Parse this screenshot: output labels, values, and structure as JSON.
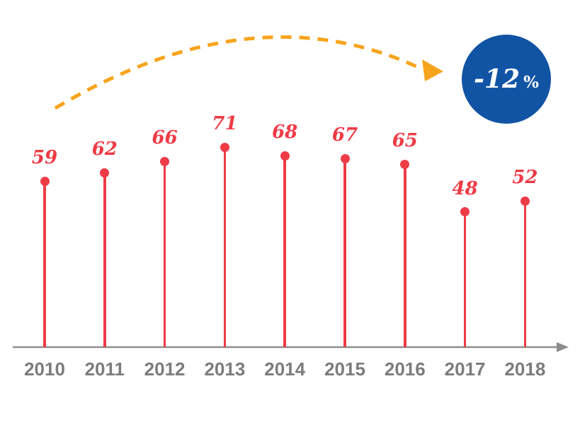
{
  "chart_data": {
    "type": "bar",
    "style": "lollipop",
    "title": "",
    "xlabel": "",
    "ylabel": "",
    "categories": [
      "2010",
      "2011",
      "2012",
      "2013",
      "2014",
      "2015",
      "2016",
      "2017",
      "2018"
    ],
    "values": [
      59,
      62,
      66,
      71,
      68,
      67,
      65,
      48,
      52
    ],
    "ylim": [
      0,
      75
    ],
    "grid": false,
    "legend": "none",
    "annotations": [
      {
        "type": "badge",
        "shape": "circle",
        "text": "-12 %",
        "color": "#1254A4",
        "text_color": "#FFFFFF"
      },
      {
        "type": "curved-dashed-arrow",
        "color": "#F7A41D",
        "from": "above 2010",
        "to": "badge"
      }
    ]
  },
  "badge": {
    "value": "-12",
    "unit": "%"
  },
  "colors": {
    "lollipop": "#EE3B46",
    "badge_bg": "#1254A4",
    "badge_text": "#FFFFFF",
    "arrow": "#F7A41D",
    "axis": "#8E8E8E",
    "tick_label": "#7C7C7C",
    "background": "#FFFFFF"
  }
}
